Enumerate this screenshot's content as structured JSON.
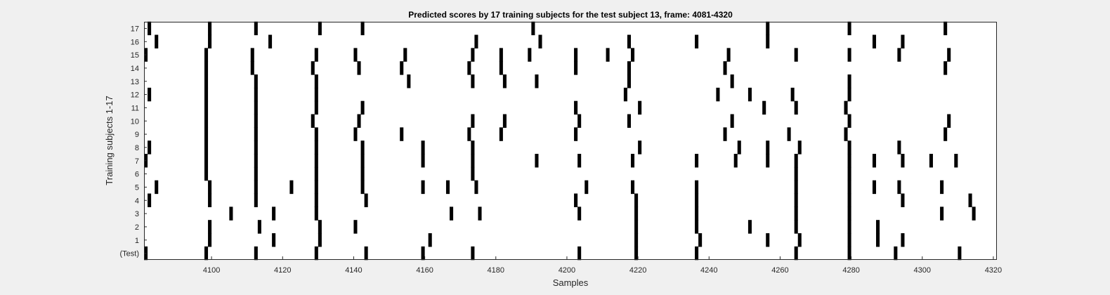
{
  "chart_data": {
    "type": "event_raster",
    "title": "Predicted scores by 17 training subjects for the test subject 13, frame: 4081-4320",
    "xlabel": "Samples",
    "ylabel": "Training subjects 1-17",
    "xlim": [
      4081,
      4321
    ],
    "xticks": [
      4100,
      4120,
      4140,
      4160,
      4180,
      4200,
      4220,
      4240,
      4260,
      4280,
      4300,
      4320
    ],
    "row_labels": [
      "(Test)",
      "1",
      "2",
      "3",
      "4",
      "5",
      "6",
      "7",
      "8",
      "9",
      "10",
      "11",
      "12",
      "13",
      "14",
      "15",
      "16",
      "17"
    ],
    "grid": false,
    "colors": {
      "background": "#f0f0f0",
      "axes": "#ffffff",
      "mark": "#000000",
      "frame": "#262626",
      "text": "#262626"
    },
    "rows": [
      {
        "label": "17",
        "events": [
          4082,
          4099,
          4112,
          4130,
          4142,
          4190,
          4256,
          4279,
          4306
        ]
      },
      {
        "label": "16",
        "events": [
          4084,
          4099,
          4116,
          4174,
          4192,
          4217,
          4236,
          4256,
          4286,
          4294
        ]
      },
      {
        "label": "15",
        "events": [
          4081,
          4098,
          4111,
          4129,
          4140,
          4154,
          4173,
          4181,
          4189,
          4202,
          4211,
          4218,
          4245,
          4264,
          4279,
          4293,
          4307
        ]
      },
      {
        "label": "14",
        "events": [
          4098,
          4111,
          4128,
          4141,
          4153,
          4172,
          4181,
          4202,
          4217,
          4244,
          4306
        ]
      },
      {
        "label": "13",
        "events": [
          4098,
          4112,
          4129,
          4155,
          4173,
          4182,
          4191,
          4217,
          4246,
          4279
        ]
      },
      {
        "label": "12",
        "events": [
          4082,
          4098,
          4112,
          4129,
          4216,
          4242,
          4251,
          4263,
          4279
        ]
      },
      {
        "label": "11",
        "events": [
          4098,
          4112,
          4129,
          4142,
          4202,
          4220,
          4255,
          4264,
          4278
        ]
      },
      {
        "label": "10",
        "events": [
          4098,
          4112,
          4128,
          4141,
          4173,
          4182,
          4203,
          4217,
          4246,
          4279,
          4307
        ]
      },
      {
        "label": "9",
        "events": [
          4098,
          4112,
          4129,
          4140,
          4153,
          4172,
          4181,
          4202,
          4244,
          4262,
          4278,
          4306
        ]
      },
      {
        "label": "8",
        "events": [
          4082,
          4098,
          4112,
          4129,
          4142,
          4159,
          4173,
          4220,
          4248,
          4256,
          4265,
          4279,
          4293
        ]
      },
      {
        "label": "7",
        "events": [
          4081,
          4098,
          4112,
          4129,
          4142,
          4159,
          4173,
          4191,
          4203,
          4218,
          4236,
          4247,
          4256,
          4264,
          4279,
          4286,
          4294,
          4302,
          4309
        ]
      },
      {
        "label": "6",
        "events": [
          4098,
          4112,
          4129,
          4142,
          4173,
          4264,
          4279
        ]
      },
      {
        "label": "5",
        "events": [
          4084,
          4099,
          4112,
          4122,
          4129,
          4142,
          4159,
          4166,
          4174,
          4205,
          4218,
          4236,
          4264,
          4279,
          4286,
          4293,
          4305
        ]
      },
      {
        "label": "4",
        "events": [
          4082,
          4099,
          4112,
          4129,
          4143,
          4202,
          4219,
          4236,
          4264,
          4279,
          4294,
          4313
        ]
      },
      {
        "label": "3",
        "events": [
          4105,
          4117,
          4129,
          4167,
          4175,
          4203,
          4219,
          4236,
          4264,
          4279,
          4305,
          4314
        ]
      },
      {
        "label": "2",
        "events": [
          4099,
          4113,
          4130,
          4140,
          4219,
          4236,
          4251,
          4264,
          4279,
          4287
        ]
      },
      {
        "label": "1",
        "events": [
          4099,
          4117,
          4130,
          4161,
          4219,
          4237,
          4256,
          4265,
          4279,
          4287,
          4294
        ]
      },
      {
        "label": "(Test)",
        "events": [
          4081,
          4098,
          4112,
          4129,
          4143,
          4159,
          4173,
          4203,
          4219,
          4236,
          4264,
          4279,
          4292,
          4310
        ]
      }
    ]
  }
}
